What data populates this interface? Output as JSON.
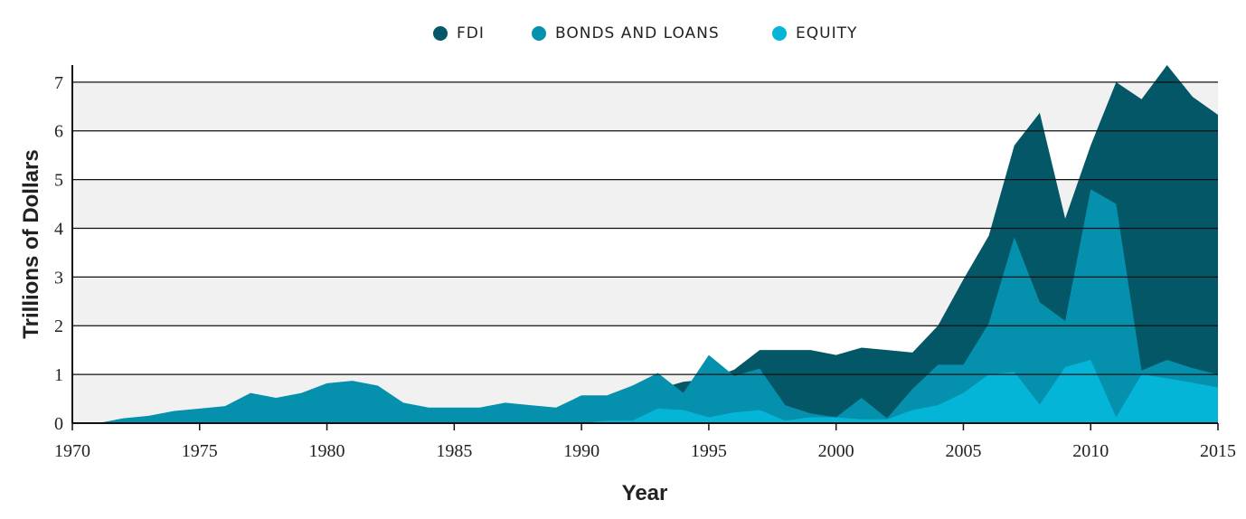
{
  "chart_data": {
    "type": "area",
    "x_label": "Year",
    "y_label": "Trillions of Dollars",
    "x": [
      1970,
      1971,
      1972,
      1973,
      1974,
      1975,
      1976,
      1977,
      1978,
      1979,
      1980,
      1981,
      1982,
      1983,
      1984,
      1985,
      1986,
      1987,
      1988,
      1989,
      1990,
      1991,
      1992,
      1993,
      1994,
      1995,
      1996,
      1997,
      1998,
      1999,
      2000,
      2001,
      2002,
      2003,
      2004,
      2005,
      2006,
      2007,
      2008,
      2009,
      2010,
      2011,
      2012,
      2013,
      2014,
      2015
    ],
    "series": [
      {
        "name": "FDI",
        "color": "#045766",
        "values": [
          null,
          null,
          null,
          null,
          null,
          null,
          null,
          null,
          null,
          null,
          null,
          null,
          null,
          null,
          null,
          null,
          null,
          null,
          null,
          null,
          null,
          null,
          null,
          0.7,
          0.85,
          0.9,
          1.1,
          1.5,
          1.5,
          1.5,
          1.4,
          1.55,
          1.5,
          1.45,
          2.0,
          2.95,
          3.85,
          5.7,
          6.37,
          4.2,
          5.7,
          7.0,
          6.65,
          7.35,
          6.7,
          6.33
        ]
      },
      {
        "name": "BONDS AND LOANS",
        "color": "#0591ad",
        "values": [
          0,
          0,
          0.1,
          0.15,
          0.25,
          0.3,
          0.35,
          0.62,
          0.52,
          0.62,
          0.82,
          0.87,
          0.77,
          0.42,
          0.32,
          0.32,
          0.32,
          0.42,
          0.37,
          0.32,
          0.57,
          0.57,
          0.77,
          1.03,
          0.62,
          1.4,
          0.97,
          1.12,
          0.37,
          0.2,
          0.12,
          0.52,
          0.1,
          0.7,
          1.2,
          1.2,
          2.05,
          3.82,
          2.48,
          2.1,
          4.8,
          4.5,
          1.08,
          1.3,
          1.13,
          1.0
        ]
      },
      {
        "name": "EQUITY",
        "color": "#04b5d8",
        "values": [
          0,
          0,
          0,
          0,
          0,
          0,
          0,
          0,
          0,
          0,
          0,
          0,
          0,
          0,
          0,
          0,
          0,
          0,
          0,
          0,
          0,
          0.05,
          0.05,
          0.3,
          0.27,
          0.12,
          0.22,
          0.27,
          0.05,
          0.12,
          0.12,
          0.08,
          0.08,
          0.27,
          0.37,
          0.62,
          1.0,
          1.05,
          0.38,
          1.15,
          1.3,
          0.12,
          1.0,
          0.92,
          0.83,
          0.73
        ]
      }
    ],
    "xlim": [
      1970,
      2015
    ],
    "xticks": [
      1970,
      1975,
      1980,
      1985,
      1990,
      1995,
      2000,
      2005,
      2010,
      2015
    ],
    "ylim": [
      0,
      7.35
    ],
    "yticks": [
      0,
      1,
      2,
      3,
      4,
      5,
      6,
      7
    ],
    "grid": true,
    "legend": "top"
  }
}
